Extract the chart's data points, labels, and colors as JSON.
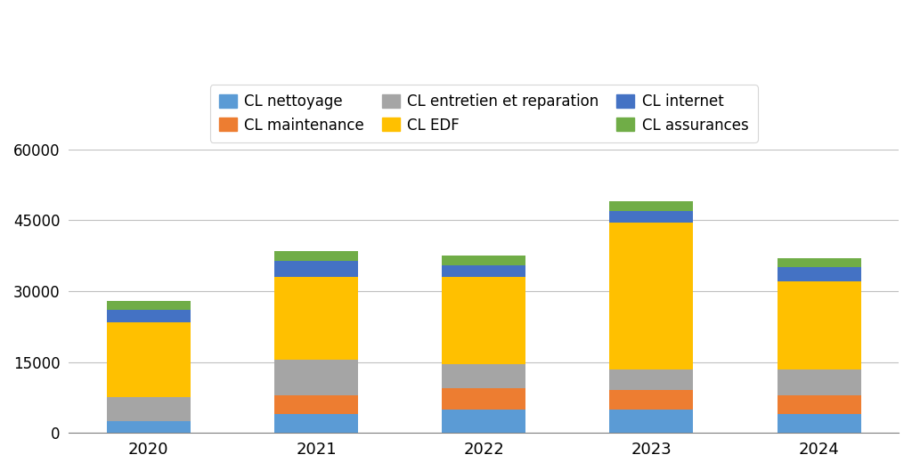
{
  "years": [
    "2020",
    "2021",
    "2022",
    "2023",
    "2024"
  ],
  "series": [
    {
      "label": "CL nettoyage",
      "color": "#5B9BD5",
      "values": [
        2500,
        4000,
        5000,
        5000,
        4000
      ]
    },
    {
      "label": "CL maintenance",
      "color": "#ED7D31",
      "values": [
        0,
        4000,
        4500,
        4000,
        4000
      ]
    },
    {
      "label": "CL entretien et reparation",
      "color": "#A5A5A5",
      "values": [
        5000,
        7500,
        5000,
        4500,
        5500
      ]
    },
    {
      "label": "CL EDF",
      "color": "#FFC000",
      "values": [
        16000,
        17500,
        18500,
        31000,
        18500
      ]
    },
    {
      "label": "CL internet",
      "color": "#4472C4",
      "values": [
        2500,
        3500,
        2500,
        2500,
        3000
      ]
    },
    {
      "label": "CL assurances",
      "color": "#70AD47",
      "values": [
        2000,
        2000,
        2000,
        2000,
        2000
      ]
    }
  ],
  "ylim": [
    0,
    60000
  ],
  "yticks": [
    0,
    15000,
    30000,
    45000,
    60000
  ],
  "background_color": "#FFFFFF",
  "legend_ncol": 3,
  "legend_order": [
    0,
    1,
    2,
    3,
    4,
    5
  ]
}
